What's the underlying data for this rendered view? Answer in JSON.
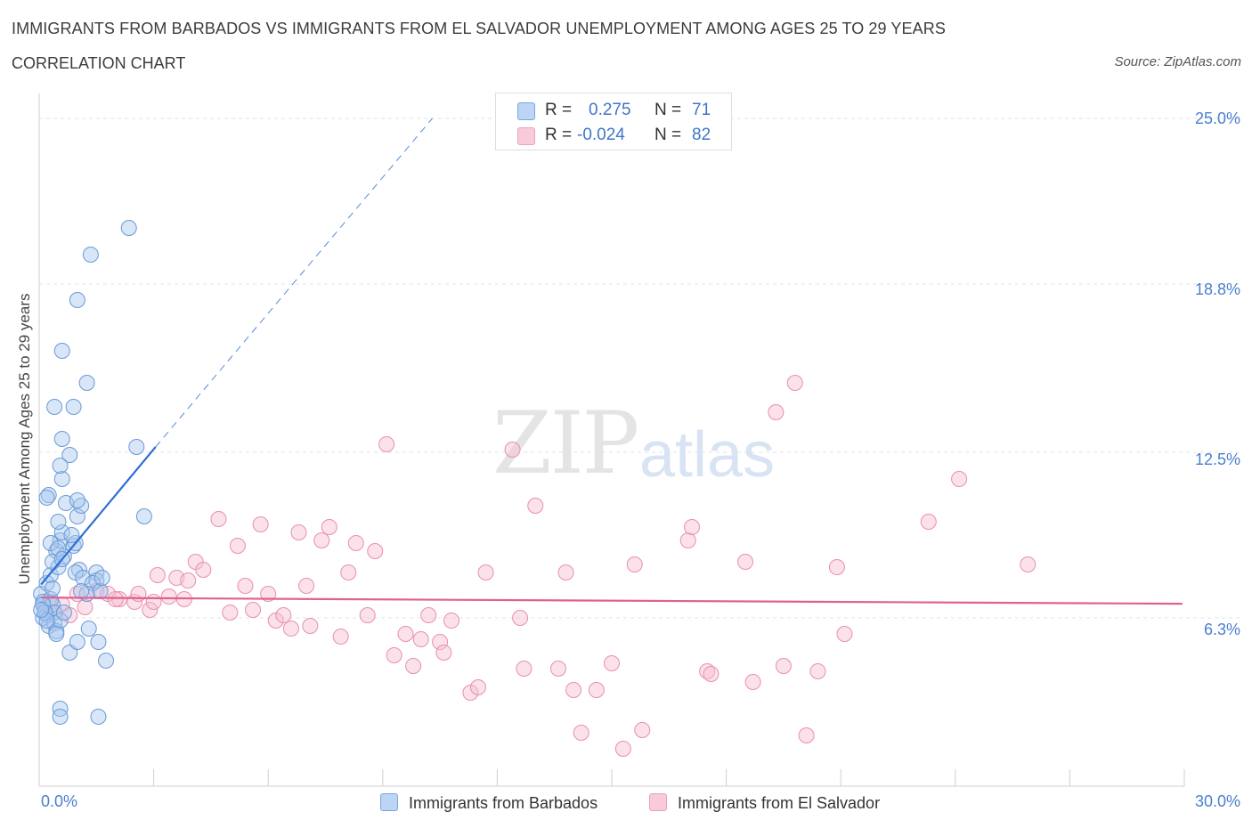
{
  "header": {
    "title": "IMMIGRANTS FROM BARBADOS VS IMMIGRANTS FROM EL SALVADOR UNEMPLOYMENT AMONG AGES 25 TO 29 YEARS",
    "subtitle": "CORRELATION CHART",
    "source": "Source: ZipAtlas.com"
  },
  "watermark": {
    "zip": "ZIP",
    "atlas": "atlas"
  },
  "legend": {
    "barbados": {
      "r_label": "R =",
      "r_value": "0.275",
      "n_label": "N =",
      "n_value": "71"
    },
    "elsalvador": {
      "r_label": "R =",
      "r_value": "-0.024",
      "n_label": "N =",
      "n_value": "82"
    }
  },
  "colors": {
    "barbados_fill": "#a9c8f0",
    "barbados_stroke": "#6a9ad6",
    "barbados_line": "#2e6fd3",
    "elsalvador_fill": "#f7bfd1",
    "elsalvador_stroke": "#e98eae",
    "elsalvador_line": "#e0608e",
    "grid": "#e3e3e3",
    "axis_text": "#4a7fd0"
  },
  "chart_data": {
    "type": "scatter",
    "title": "IMMIGRANTS FROM BARBADOS VS IMMIGRANTS FROM EL SALVADOR UNEMPLOYMENT AMONG AGES 25 TO 29 YEARS",
    "xlabel": "",
    "ylabel": "Unemployment Among Ages 25 to 29 years",
    "xlim": [
      0,
      30
    ],
    "ylim": [
      0,
      25
    ],
    "x_tick_labels": [
      "0.0%",
      "30.0%"
    ],
    "y_ticks": [
      6.3,
      12.5,
      18.8,
      25.0
    ],
    "y_tick_labels": [
      "6.3%",
      "12.5%",
      "18.8%",
      "25.0%"
    ],
    "grid": true,
    "legend_position": "top-center",
    "series": [
      {
        "name": "Immigrants from Barbados",
        "R": 0.275,
        "N": 71,
        "trend": {
          "x0": 0.05,
          "y0": 7.55,
          "x1": 3.05,
          "y1": 12.7,
          "dashed_to_x": 10.3,
          "dashed_to_y": 25.0
        },
        "points": [
          [
            0.05,
            7.2
          ],
          [
            0.1,
            6.9
          ],
          [
            0.15,
            6.6
          ],
          [
            0.2,
            6.4
          ],
          [
            0.25,
            6.0
          ],
          [
            0.1,
            6.3
          ],
          [
            0.3,
            7.0
          ],
          [
            0.35,
            6.8
          ],
          [
            0.4,
            6.5
          ],
          [
            0.2,
            7.6
          ],
          [
            0.3,
            7.9
          ],
          [
            0.5,
            8.2
          ],
          [
            0.45,
            8.8
          ],
          [
            0.55,
            9.2
          ],
          [
            0.6,
            9.5
          ],
          [
            0.5,
            9.9
          ],
          [
            0.3,
            9.1
          ],
          [
            0.35,
            8.4
          ],
          [
            0.4,
            6.1
          ],
          [
            0.45,
            5.8
          ],
          [
            0.25,
            10.9
          ],
          [
            0.6,
            11.5
          ],
          [
            0.7,
            10.6
          ],
          [
            0.8,
            12.4
          ],
          [
            1.0,
            10.1
          ],
          [
            1.1,
            10.5
          ],
          [
            1.0,
            10.7
          ],
          [
            0.9,
            9.0
          ],
          [
            0.95,
            9.1
          ],
          [
            0.85,
            9.4
          ],
          [
            0.65,
            8.6
          ],
          [
            1.05,
            8.1
          ],
          [
            0.95,
            8.0
          ],
          [
            1.15,
            7.8
          ],
          [
            1.5,
            8.0
          ],
          [
            1.5,
            7.7
          ],
          [
            1.4,
            7.6
          ],
          [
            1.6,
            7.3
          ],
          [
            1.25,
            7.2
          ],
          [
            1.65,
            7.8
          ],
          [
            1.1,
            7.3
          ],
          [
            0.5,
            8.9
          ],
          [
            0.6,
            8.5
          ],
          [
            0.2,
            10.8
          ],
          [
            0.55,
            12.0
          ],
          [
            0.6,
            13.0
          ],
          [
            2.55,
            12.7
          ],
          [
            0.4,
            14.2
          ],
          [
            0.9,
            14.2
          ],
          [
            1.25,
            15.1
          ],
          [
            0.6,
            16.3
          ],
          [
            1.0,
            18.2
          ],
          [
            1.35,
            19.9
          ],
          [
            2.35,
            20.9
          ],
          [
            2.75,
            10.1
          ],
          [
            0.55,
            6.2
          ],
          [
            0.45,
            5.7
          ],
          [
            0.8,
            5.0
          ],
          [
            1.0,
            5.4
          ],
          [
            1.3,
            5.9
          ],
          [
            1.55,
            5.4
          ],
          [
            1.75,
            4.7
          ],
          [
            0.55,
            2.9
          ],
          [
            0.55,
            2.6
          ],
          [
            1.55,
            2.6
          ],
          [
            0.1,
            6.8
          ],
          [
            0.15,
            6.5
          ],
          [
            0.35,
            7.4
          ],
          [
            0.65,
            6.5
          ],
          [
            0.2,
            6.2
          ],
          [
            0.05,
            6.6
          ]
        ]
      },
      {
        "name": "Immigrants from El Salvador",
        "R": -0.024,
        "N": 82,
        "trend": {
          "x0": 0.05,
          "y0": 7.06,
          "x1": 29.95,
          "y1": 6.83
        },
        "points": [
          [
            0.3,
            6.9
          ],
          [
            0.4,
            6.5
          ],
          [
            0.6,
            6.8
          ],
          [
            0.8,
            6.4
          ],
          [
            1.0,
            7.2
          ],
          [
            1.2,
            6.7
          ],
          [
            1.5,
            7.3
          ],
          [
            1.8,
            7.2
          ],
          [
            2.1,
            7.0
          ],
          [
            2.5,
            6.9
          ],
          [
            2.6,
            7.2
          ],
          [
            2.9,
            6.6
          ],
          [
            3.0,
            6.9
          ],
          [
            3.1,
            7.9
          ],
          [
            3.4,
            7.1
          ],
          [
            3.6,
            7.8
          ],
          [
            3.8,
            7.0
          ],
          [
            3.9,
            7.7
          ],
          [
            4.1,
            8.4
          ],
          [
            4.3,
            8.1
          ],
          [
            4.7,
            10.0
          ],
          [
            5.0,
            6.5
          ],
          [
            5.2,
            9.0
          ],
          [
            5.4,
            7.5
          ],
          [
            5.6,
            6.6
          ],
          [
            5.8,
            9.8
          ],
          [
            6.0,
            7.2
          ],
          [
            6.2,
            6.2
          ],
          [
            6.4,
            6.4
          ],
          [
            6.8,
            9.5
          ],
          [
            7.0,
            7.5
          ],
          [
            7.1,
            6.0
          ],
          [
            7.4,
            9.2
          ],
          [
            7.6,
            9.7
          ],
          [
            7.9,
            5.6
          ],
          [
            8.1,
            8.0
          ],
          [
            8.3,
            9.1
          ],
          [
            8.6,
            6.4
          ],
          [
            8.8,
            8.8
          ],
          [
            9.1,
            12.8
          ],
          [
            9.3,
            4.9
          ],
          [
            9.6,
            5.7
          ],
          [
            9.8,
            4.5
          ],
          [
            10.0,
            5.5
          ],
          [
            10.2,
            6.4
          ],
          [
            10.5,
            5.4
          ],
          [
            10.6,
            5.0
          ],
          [
            10.8,
            6.2
          ],
          [
            11.3,
            3.5
          ],
          [
            11.5,
            3.7
          ],
          [
            11.7,
            8.0
          ],
          [
            12.4,
            12.6
          ],
          [
            12.6,
            6.3
          ],
          [
            12.7,
            4.4
          ],
          [
            13.0,
            10.5
          ],
          [
            13.6,
            4.4
          ],
          [
            13.8,
            8.0
          ],
          [
            14.0,
            3.6
          ],
          [
            14.2,
            2.0
          ],
          [
            14.6,
            3.6
          ],
          [
            15.0,
            4.6
          ],
          [
            15.3,
            1.4
          ],
          [
            15.6,
            8.3
          ],
          [
            15.8,
            2.1
          ],
          [
            17.0,
            9.2
          ],
          [
            17.1,
            9.7
          ],
          [
            17.5,
            4.3
          ],
          [
            17.6,
            4.2
          ],
          [
            18.5,
            8.4
          ],
          [
            18.7,
            3.9
          ],
          [
            19.3,
            14.0
          ],
          [
            19.5,
            4.5
          ],
          [
            19.8,
            15.1
          ],
          [
            20.1,
            1.9
          ],
          [
            20.4,
            4.3
          ],
          [
            20.9,
            8.2
          ],
          [
            21.1,
            5.7
          ],
          [
            23.3,
            9.9
          ],
          [
            24.1,
            11.5
          ],
          [
            25.9,
            8.3
          ],
          [
            2.0,
            7.0
          ],
          [
            6.6,
            5.9
          ]
        ]
      }
    ]
  },
  "bottom_legend": {
    "barbados": "Immigrants from Barbados",
    "elsalvador": "Immigrants from El Salvador"
  }
}
